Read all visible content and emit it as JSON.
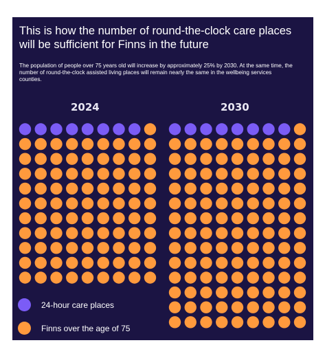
{
  "title": "This is how the number of round-the-clock care places will be sufficient for Finns in the future",
  "subtitle": "The population of people over 75 years old will increase by approximately 25% by 2030. At the same time, the number of round-the-clock assisted living places will remain nearly the same in the wellbeing services counties.",
  "colors": {
    "background": "#1b1443",
    "care": "#7b5cf6",
    "finns": "#ff9a3d"
  },
  "chart_data": {
    "type": "waffle",
    "series": [
      {
        "name": "24-hour care places",
        "color": "#7b5cf6"
      },
      {
        "name": "Finns over the age of 75",
        "color": "#ff9a3d"
      }
    ],
    "panels": [
      {
        "year": "2024",
        "columns": 9,
        "rows": 11,
        "care_places": 8,
        "finns_over_75": 91
      },
      {
        "year": "2030",
        "columns": 9,
        "rows": 14,
        "care_places": 8,
        "finns_over_75": 118
      }
    ]
  },
  "legend": [
    {
      "label": "24-hour care places",
      "color": "#7b5cf6"
    },
    {
      "label": "Finns over the age of 75",
      "color": "#ff9a3d"
    }
  ]
}
